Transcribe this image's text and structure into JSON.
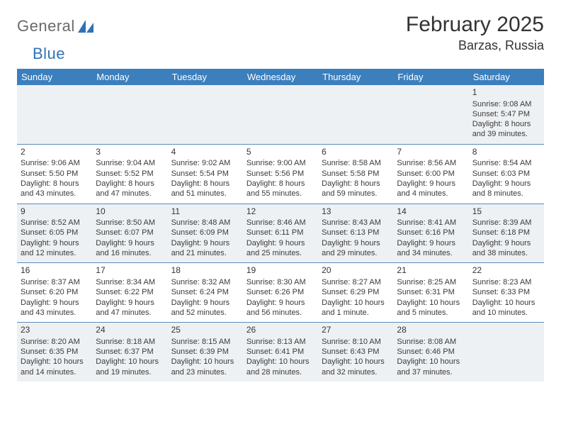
{
  "brand": {
    "part1": "General",
    "part2": "Blue"
  },
  "title": "February 2025",
  "location": "Barzas, Russia",
  "colors": {
    "headerBg": "#3b7fbd",
    "rowAlt": "#eef1f3",
    "rowBase": "#ffffff",
    "rule": "#5a8bb8",
    "text": "#333333"
  },
  "dayNames": [
    "Sunday",
    "Monday",
    "Tuesday",
    "Wednesday",
    "Thursday",
    "Friday",
    "Saturday"
  ],
  "layout": {
    "cols": 7,
    "rows": 5,
    "cellFont": 11,
    "headerFont": 13,
    "titleFont": 30
  },
  "weeks": [
    [
      {
        "n": "",
        "sr": "",
        "ss": "",
        "dl": ""
      },
      {
        "n": "",
        "sr": "",
        "ss": "",
        "dl": ""
      },
      {
        "n": "",
        "sr": "",
        "ss": "",
        "dl": ""
      },
      {
        "n": "",
        "sr": "",
        "ss": "",
        "dl": ""
      },
      {
        "n": "",
        "sr": "",
        "ss": "",
        "dl": ""
      },
      {
        "n": "",
        "sr": "",
        "ss": "",
        "dl": ""
      },
      {
        "n": "1",
        "sr": "Sunrise: 9:08 AM",
        "ss": "Sunset: 5:47 PM",
        "dl": "Daylight: 8 hours and 39 minutes."
      }
    ],
    [
      {
        "n": "2",
        "sr": "Sunrise: 9:06 AM",
        "ss": "Sunset: 5:50 PM",
        "dl": "Daylight: 8 hours and 43 minutes."
      },
      {
        "n": "3",
        "sr": "Sunrise: 9:04 AM",
        "ss": "Sunset: 5:52 PM",
        "dl": "Daylight: 8 hours and 47 minutes."
      },
      {
        "n": "4",
        "sr": "Sunrise: 9:02 AM",
        "ss": "Sunset: 5:54 PM",
        "dl": "Daylight: 8 hours and 51 minutes."
      },
      {
        "n": "5",
        "sr": "Sunrise: 9:00 AM",
        "ss": "Sunset: 5:56 PM",
        "dl": "Daylight: 8 hours and 55 minutes."
      },
      {
        "n": "6",
        "sr": "Sunrise: 8:58 AM",
        "ss": "Sunset: 5:58 PM",
        "dl": "Daylight: 8 hours and 59 minutes."
      },
      {
        "n": "7",
        "sr": "Sunrise: 8:56 AM",
        "ss": "Sunset: 6:00 PM",
        "dl": "Daylight: 9 hours and 4 minutes."
      },
      {
        "n": "8",
        "sr": "Sunrise: 8:54 AM",
        "ss": "Sunset: 6:03 PM",
        "dl": "Daylight: 9 hours and 8 minutes."
      }
    ],
    [
      {
        "n": "9",
        "sr": "Sunrise: 8:52 AM",
        "ss": "Sunset: 6:05 PM",
        "dl": "Daylight: 9 hours and 12 minutes."
      },
      {
        "n": "10",
        "sr": "Sunrise: 8:50 AM",
        "ss": "Sunset: 6:07 PM",
        "dl": "Daylight: 9 hours and 16 minutes."
      },
      {
        "n": "11",
        "sr": "Sunrise: 8:48 AM",
        "ss": "Sunset: 6:09 PM",
        "dl": "Daylight: 9 hours and 21 minutes."
      },
      {
        "n": "12",
        "sr": "Sunrise: 8:46 AM",
        "ss": "Sunset: 6:11 PM",
        "dl": "Daylight: 9 hours and 25 minutes."
      },
      {
        "n": "13",
        "sr": "Sunrise: 8:43 AM",
        "ss": "Sunset: 6:13 PM",
        "dl": "Daylight: 9 hours and 29 minutes."
      },
      {
        "n": "14",
        "sr": "Sunrise: 8:41 AM",
        "ss": "Sunset: 6:16 PM",
        "dl": "Daylight: 9 hours and 34 minutes."
      },
      {
        "n": "15",
        "sr": "Sunrise: 8:39 AM",
        "ss": "Sunset: 6:18 PM",
        "dl": "Daylight: 9 hours and 38 minutes."
      }
    ],
    [
      {
        "n": "16",
        "sr": "Sunrise: 8:37 AM",
        "ss": "Sunset: 6:20 PM",
        "dl": "Daylight: 9 hours and 43 minutes."
      },
      {
        "n": "17",
        "sr": "Sunrise: 8:34 AM",
        "ss": "Sunset: 6:22 PM",
        "dl": "Daylight: 9 hours and 47 minutes."
      },
      {
        "n": "18",
        "sr": "Sunrise: 8:32 AM",
        "ss": "Sunset: 6:24 PM",
        "dl": "Daylight: 9 hours and 52 minutes."
      },
      {
        "n": "19",
        "sr": "Sunrise: 8:30 AM",
        "ss": "Sunset: 6:26 PM",
        "dl": "Daylight: 9 hours and 56 minutes."
      },
      {
        "n": "20",
        "sr": "Sunrise: 8:27 AM",
        "ss": "Sunset: 6:29 PM",
        "dl": "Daylight: 10 hours and 1 minute."
      },
      {
        "n": "21",
        "sr": "Sunrise: 8:25 AM",
        "ss": "Sunset: 6:31 PM",
        "dl": "Daylight: 10 hours and 5 minutes."
      },
      {
        "n": "22",
        "sr": "Sunrise: 8:23 AM",
        "ss": "Sunset: 6:33 PM",
        "dl": "Daylight: 10 hours and 10 minutes."
      }
    ],
    [
      {
        "n": "23",
        "sr": "Sunrise: 8:20 AM",
        "ss": "Sunset: 6:35 PM",
        "dl": "Daylight: 10 hours and 14 minutes."
      },
      {
        "n": "24",
        "sr": "Sunrise: 8:18 AM",
        "ss": "Sunset: 6:37 PM",
        "dl": "Daylight: 10 hours and 19 minutes."
      },
      {
        "n": "25",
        "sr": "Sunrise: 8:15 AM",
        "ss": "Sunset: 6:39 PM",
        "dl": "Daylight: 10 hours and 23 minutes."
      },
      {
        "n": "26",
        "sr": "Sunrise: 8:13 AM",
        "ss": "Sunset: 6:41 PM",
        "dl": "Daylight: 10 hours and 28 minutes."
      },
      {
        "n": "27",
        "sr": "Sunrise: 8:10 AM",
        "ss": "Sunset: 6:43 PM",
        "dl": "Daylight: 10 hours and 32 minutes."
      },
      {
        "n": "28",
        "sr": "Sunrise: 8:08 AM",
        "ss": "Sunset: 6:46 PM",
        "dl": "Daylight: 10 hours and 37 minutes."
      },
      {
        "n": "",
        "sr": "",
        "ss": "",
        "dl": ""
      }
    ]
  ]
}
